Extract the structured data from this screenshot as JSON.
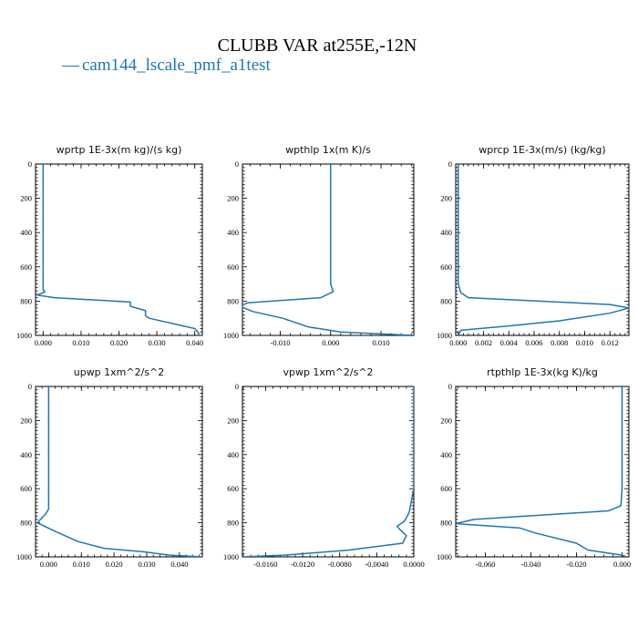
{
  "figure": {
    "title": "CLUBB VAR at255E,-12N",
    "legend": {
      "marker": "—",
      "label": "cam144_lscale_pmf_a1test",
      "color": "#1f77b4"
    }
  },
  "chart_data": [
    {
      "type": "line",
      "title": "wprtp  1E-3x(m kg)/(s kg)",
      "xlim": [
        -0.002,
        0.042
      ],
      "ylim": [
        0,
        1000
      ],
      "y_inverted": true,
      "xticks": [
        "0.000",
        "0.010",
        "0.020",
        "0.030",
        "0.040"
      ],
      "xtick_values": [
        0,
        0.01,
        0.02,
        0.03,
        0.04
      ],
      "yticks": [
        "0",
        "200",
        "400",
        "600",
        "800",
        "1000"
      ],
      "ytick_values": [
        0,
        200,
        400,
        600,
        800,
        1000
      ],
      "series": [
        {
          "color": "#1f77b4",
          "x": [
            0.0,
            0.0,
            0.0,
            0.0,
            0.0,
            0.0,
            0.0002,
            0.0005,
            -0.0015,
            0.003,
            0.023,
            0.023,
            0.027,
            0.027,
            0.028,
            0.04,
            0.041,
            0.041
          ],
          "y": [
            0,
            200,
            400,
            600,
            700,
            730,
            740,
            745,
            765,
            780,
            805,
            830,
            855,
            885,
            900,
            960,
            985,
            1000
          ]
        }
      ]
    },
    {
      "type": "line",
      "title": "wpthlp  1x(m K)/s",
      "xlim": [
        -0.0175,
        0.0165
      ],
      "ylim": [
        0,
        1000
      ],
      "y_inverted": true,
      "xticks": [
        "-0.010",
        "0.000",
        "0.010"
      ],
      "xtick_values": [
        -0.01,
        0.0,
        0.01
      ],
      "yticks": [
        "0",
        "200",
        "400",
        "600",
        "800",
        "1000"
      ],
      "ytick_values": [
        0,
        200,
        400,
        600,
        800,
        1000
      ],
      "series": [
        {
          "color": "#1f77b4",
          "x": [
            0.0,
            0.0,
            0.0,
            0.0,
            0.0,
            0.0005,
            -0.002,
            -0.0165,
            -0.018,
            -0.0155,
            -0.0095,
            -0.0045,
            0.002,
            0.0165
          ],
          "y": [
            0,
            200,
            400,
            600,
            700,
            745,
            780,
            810,
            830,
            860,
            900,
            950,
            980,
            1000
          ]
        }
      ]
    },
    {
      "type": "line",
      "title": "wprcp  1E-3x(m/s) (kg/kg)",
      "xlim": [
        -0.0002,
        0.0135
      ],
      "ylim": [
        0,
        1000
      ],
      "y_inverted": true,
      "xticks": [
        "0.000",
        "0.002",
        "0.004",
        "0.006",
        "0.008",
        "0.010",
        "0.012"
      ],
      "xtick_values": [
        0,
        0.002,
        0.004,
        0.006,
        0.008,
        0.01,
        0.012
      ],
      "yticks": [
        "0",
        "200",
        "400",
        "600",
        "800",
        "1000"
      ],
      "ytick_values": [
        0,
        200,
        400,
        600,
        800,
        1000
      ],
      "series": [
        {
          "color": "#1f77b4",
          "x": [
            0.0,
            0.0,
            0.0,
            0.0,
            0.0,
            0.0002,
            0.0008,
            0.012,
            0.0135,
            0.012,
            0.008,
            0.004,
            0.0002,
            0.0
          ],
          "y": [
            0,
            200,
            400,
            600,
            700,
            750,
            780,
            820,
            840,
            870,
            915,
            945,
            970,
            1000
          ]
        }
      ]
    },
    {
      "type": "line",
      "title": "upwp  1xm^2/s^2",
      "xlim": [
        -0.004,
        0.047
      ],
      "ylim": [
        0,
        1000
      ],
      "y_inverted": true,
      "xticks": [
        "0.000",
        "0.010",
        "0.020",
        "0.030",
        "0.040"
      ],
      "xtick_values": [
        0,
        0.01,
        0.02,
        0.03,
        0.04
      ],
      "yticks": [
        "0",
        "200",
        "400",
        "600",
        "800",
        "1000"
      ],
      "ytick_values": [
        0,
        200,
        400,
        600,
        800,
        1000
      ],
      "series": [
        {
          "color": "#1f77b4",
          "x": [
            0.0,
            0.0,
            0.0,
            0.0,
            0.0,
            -0.001,
            -0.0035,
            0.002,
            0.009,
            0.017,
            0.029,
            0.037,
            0.047
          ],
          "y": [
            0,
            200,
            400,
            600,
            720,
            750,
            800,
            850,
            910,
            950,
            970,
            990,
            1000
          ]
        }
      ]
    },
    {
      "type": "line",
      "title": "vpwp  1xm^2/s^2",
      "xlim": [
        -0.0185,
        0.0
      ],
      "ylim": [
        0,
        1000
      ],
      "y_inverted": true,
      "xticks": [
        "-0.0160",
        "-0.0120",
        "-0.0080",
        "-0.0040",
        "0.0000"
      ],
      "xtick_values": [
        -0.016,
        -0.012,
        -0.008,
        -0.004,
        0.0
      ],
      "yticks": [
        "0",
        "200",
        "400",
        "600",
        "800",
        "1000"
      ],
      "ytick_values": [
        0,
        200,
        400,
        600,
        800,
        1000
      ],
      "series": [
        {
          "color": "#1f77b4",
          "x": [
            0.0,
            0.0,
            0.0,
            0.0,
            -0.0005,
            -0.001,
            -0.0018,
            -0.0015,
            -0.0008,
            -0.0012,
            -0.007,
            -0.014,
            -0.0185
          ],
          "y": [
            0,
            200,
            400,
            600,
            740,
            790,
            820,
            840,
            875,
            920,
            960,
            990,
            1000
          ]
        }
      ]
    },
    {
      "type": "line",
      "title": "rtpthlp  1E-3x(kg K)/kg",
      "xlim": [
        -0.073,
        0.003
      ],
      "ylim": [
        0,
        1000
      ],
      "y_inverted": true,
      "xticks": [
        "-0.060",
        "-0.040",
        "-0.020",
        "0.000"
      ],
      "xtick_values": [
        -0.06,
        -0.04,
        -0.02,
        0.0
      ],
      "yticks": [
        "0",
        "200",
        "400",
        "600",
        "800",
        "1000"
      ],
      "ytick_values": [
        0,
        200,
        400,
        600,
        800,
        1000
      ],
      "series": [
        {
          "color": "#1f77b4",
          "x": [
            0.0,
            0.0,
            0.0,
            0.0,
            -0.0005,
            -0.006,
            -0.065,
            -0.073,
            -0.045,
            -0.038,
            -0.02,
            -0.015,
            0.0,
            0.002
          ],
          "y": [
            0,
            200,
            400,
            600,
            700,
            730,
            780,
            805,
            830,
            860,
            920,
            960,
            990,
            1000
          ]
        }
      ]
    }
  ]
}
